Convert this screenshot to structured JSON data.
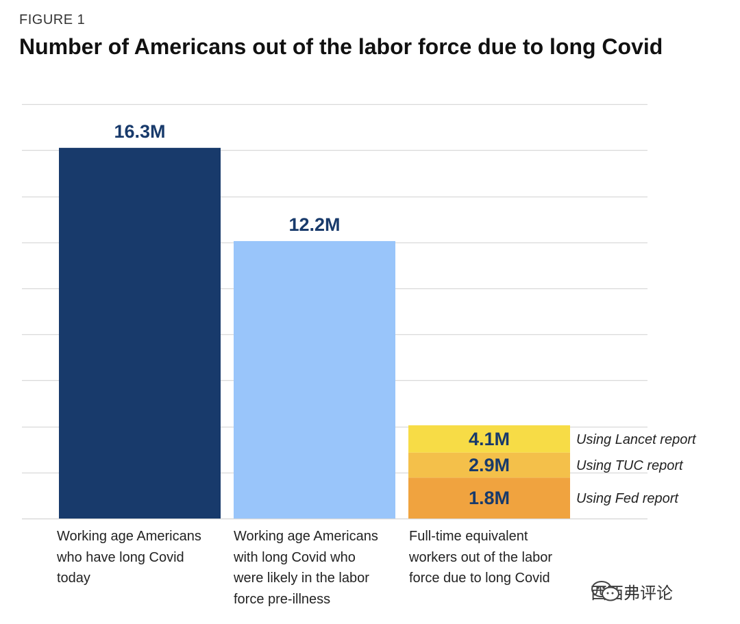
{
  "figure_label": "FIGURE 1",
  "watermark_text": "西西弗评论",
  "chart_data": {
    "type": "bar",
    "title": "Number of Americans out of the labor force due to long Covid",
    "xlabel": "",
    "ylabel": "",
    "ylim": [
      0,
      18
    ],
    "grid": true,
    "legend": "none",
    "categories": [
      "Working age Americans who have long Covid today",
      "Working age Americans with long Covid who were likely in the labor force pre-illness",
      "Full-time equivalent workers out of the labor force due to long Covid"
    ],
    "category_lines": [
      [
        "Working age Americans",
        "who have long Covid",
        "today"
      ],
      [
        "Working age Americans",
        "with long Covid who",
        "were likely in the labor",
        "force pre-illness"
      ],
      [
        "Full-time equivalent",
        "workers out of the labor",
        "force due to long Covid"
      ]
    ],
    "bars": [
      {
        "value": 16.3,
        "label": "16.3M",
        "color": "#183a6b"
      },
      {
        "value": 12.2,
        "label": "12.2M",
        "color": "#99c5fa"
      }
    ],
    "stacked": {
      "category_index": 2,
      "segments": [
        {
          "value": 1.8,
          "label": "1.8M",
          "annotation": "Using Fed report",
          "color": "#f0a33f"
        },
        {
          "value": 2.9,
          "label": "2.9M",
          "annotation": "Using TUC report",
          "color": "#f4c04a"
        },
        {
          "value": 4.1,
          "label": "4.1M",
          "annotation": "Using Lancet report",
          "color": "#f7dc46"
        }
      ]
    },
    "label_color": "#183a6b"
  }
}
